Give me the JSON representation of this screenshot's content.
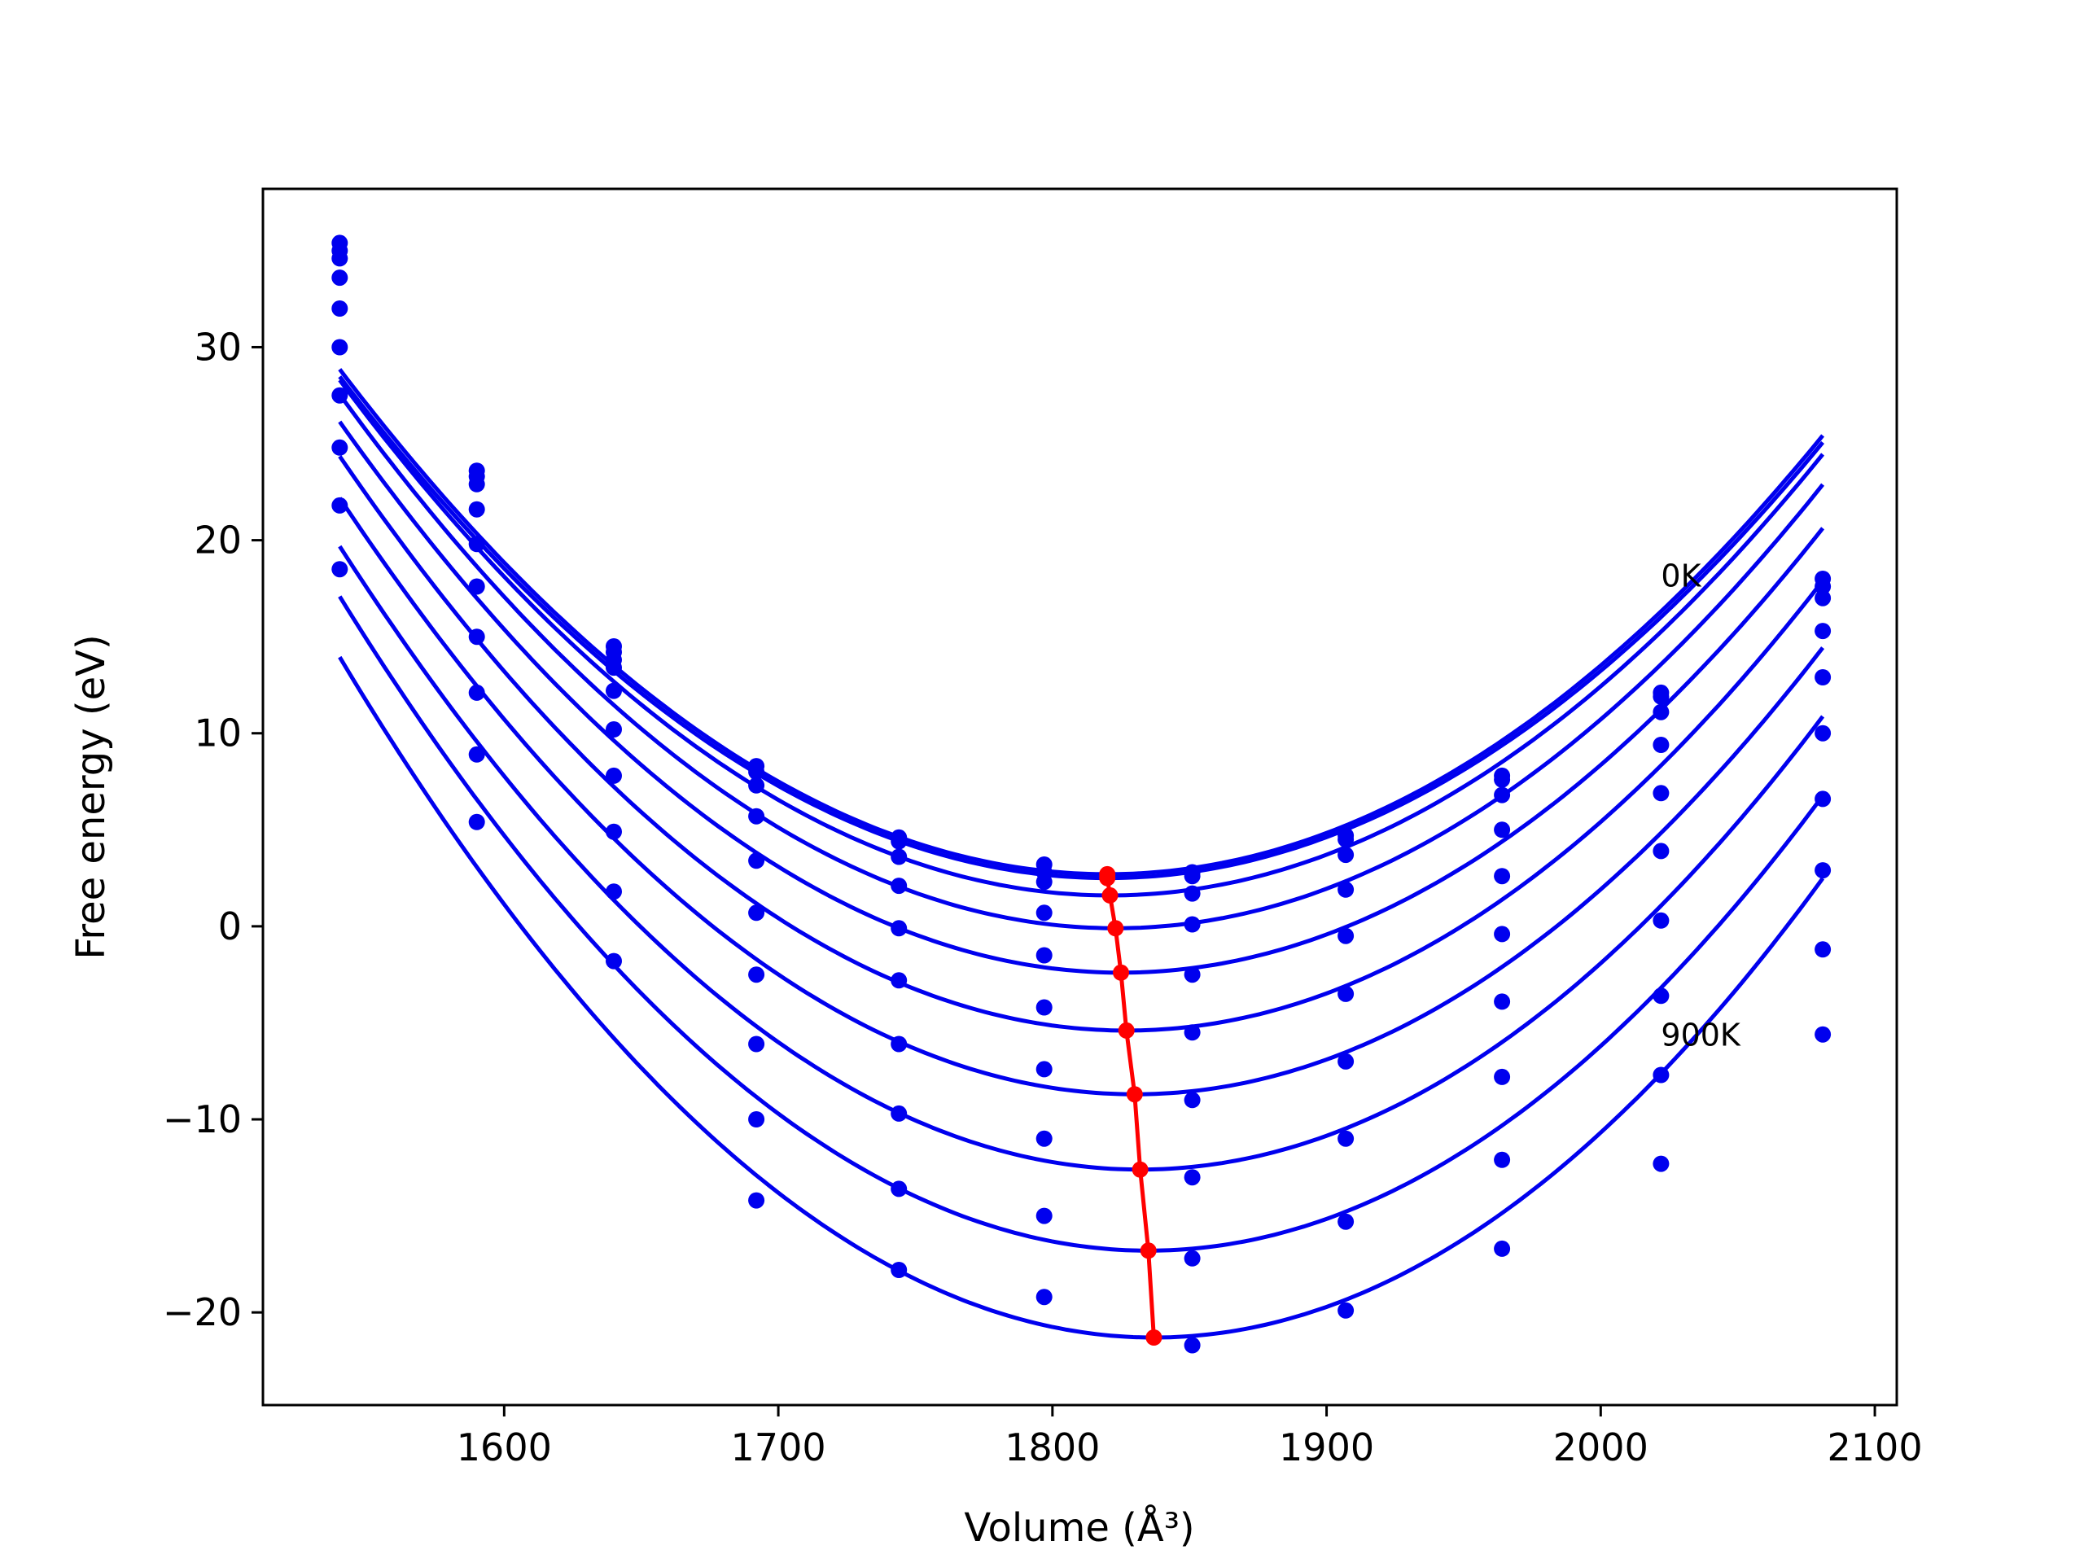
{
  "chart_data": {
    "type": "line",
    "title": "",
    "xlabel": "Volume (Å³)",
    "ylabel": "Free energy (eV)",
    "xlim": [
      1512,
      2108
    ],
    "ylim": [
      -24.8,
      38.2
    ],
    "xticks": [
      1600,
      1700,
      1800,
      1900,
      2000,
      2100
    ],
    "yticks": [
      -20,
      -10,
      0,
      10,
      20,
      30
    ],
    "ytick_labels": [
      "−20",
      "−10",
      "0",
      "10",
      "20",
      "30"
    ],
    "grid": false,
    "legend": "none",
    "annotations": [
      {
        "text": "0K",
        "x": 2022,
        "y": 18.2
      },
      {
        "text": "900K",
        "x": 2022,
        "y": -5.6
      }
    ],
    "volumes": [
      1540,
      1590,
      1640,
      1692,
      1744,
      1797,
      1851,
      1907,
      1964,
      2022,
      2081
    ],
    "series": [
      {
        "points": [
          35.4,
          23.6,
          14.5,
          8.3,
          4.6,
          3.2,
          2.8,
          4.7,
          7.8,
          12.1,
          18.0
        ],
        "curve": {
          "vmin": 1820,
          "fmin": 2.7
        }
      },
      {
        "points": [
          35.0,
          23.3,
          14.2,
          8.0,
          4.4,
          2.8,
          2.6,
          4.5,
          7.6,
          11.9,
          17.6
        ],
        "curve": {
          "vmin": 1820,
          "fmin": 2.5
        }
      },
      {
        "points": [
          34.6,
          22.9,
          13.8,
          7.3,
          3.6,
          2.3,
          1.7,
          3.7,
          6.8,
          11.1,
          17.0
        ],
        "curve": {
          "vmin": 1821,
          "fmin": 1.6
        }
      },
      {
        "points": [
          33.6,
          21.6,
          13.4,
          5.7,
          2.1,
          0.7,
          0.1,
          1.9,
          5.0,
          9.4,
          15.3
        ],
        "curve": {
          "vmin": 1823,
          "fmin": -0.1
        }
      },
      {
        "points": [
          32.0,
          19.8,
          12.2,
          3.4,
          -0.1,
          -1.5,
          -2.5,
          -0.5,
          2.6,
          6.9,
          12.9
        ],
        "curve": {
          "vmin": 1825,
          "fmin": -2.4
        }
      },
      {
        "points": [
          30.0,
          17.6,
          10.2,
          0.7,
          -2.8,
          -4.2,
          -5.5,
          -3.5,
          -0.4,
          3.9,
          10.0
        ],
        "curve": {
          "vmin": 1827,
          "fmin": -5.4
        }
      },
      {
        "points": [
          27.5,
          15.0,
          7.8,
          -2.5,
          -6.1,
          -7.4,
          -9.0,
          -7.0,
          -3.9,
          0.3,
          6.6
        ],
        "curve": {
          "vmin": 1830,
          "fmin": -8.7
        }
      },
      {
        "points": [
          24.8,
          12.1,
          4.9,
          -6.1,
          -9.7,
          -11.0,
          -13.0,
          -11.0,
          -7.8,
          -3.6,
          2.9
        ],
        "curve": {
          "vmin": 1832,
          "fmin": -12.6
        }
      },
      {
        "points": [
          21.8,
          8.9,
          1.8,
          -10.0,
          -13.6,
          -15.0,
          -17.2,
          -15.3,
          -12.1,
          -7.7,
          -1.2
        ],
        "curve": {
          "vmin": 1835,
          "fmin": -16.8
        }
      },
      {
        "points": [
          18.5,
          5.4,
          -1.8,
          -14.2,
          -17.8,
          -19.2,
          -21.7,
          -19.9,
          -16.7,
          -12.3,
          -5.6
        ],
        "curve": {
          "vmin": 1837,
          "fmin": -21.3
        }
      }
    ],
    "equilibrium_curve": {
      "x": [
        1820,
        1820,
        1821,
        1823,
        1825,
        1827,
        1830,
        1832,
        1835,
        1837
      ],
      "y": [
        2.7,
        2.5,
        1.6,
        -0.1,
        -2.4,
        -5.4,
        -8.7,
        -12.6,
        -16.8,
        -21.3
      ]
    },
    "colors": {
      "fit": "#0000ee",
      "points": "#0000ee",
      "equilibrium": "#ff0000",
      "axes": "#000000"
    }
  }
}
